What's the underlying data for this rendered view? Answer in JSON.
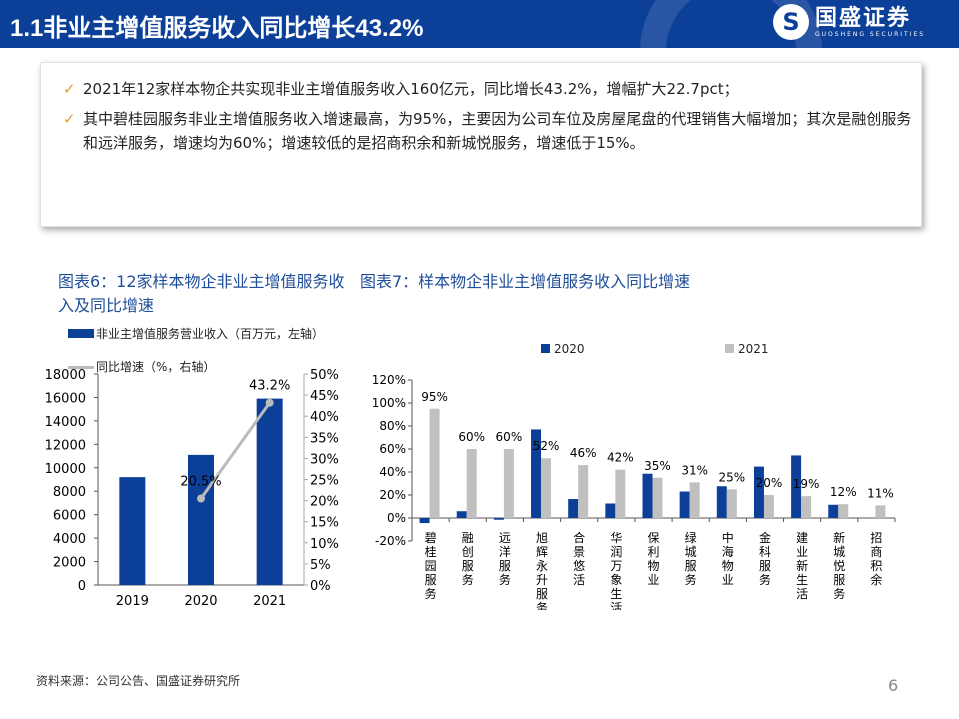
{
  "header": {
    "title": "1.1非业主增值服务收入同比增长43.2%",
    "logo_cn": "国盛证券",
    "logo_en": "GUOSHENG SECURITIES"
  },
  "bullets": [
    {
      "icon": "check-icon",
      "text": "2021年12家样本物企共实现非业主增值服务收入160亿元，同比增长43.2%，增幅扩大22.7pct；"
    },
    {
      "icon": "check-icon",
      "text": "其中碧桂园服务非业主增值服务收入增速最高，为95%，主要因为公司车位及房屋尾盘的代理销售大幅增加；其次是融创服务和远洋服务，增速均为60%；增速较低的是招商积余和新城悦服务，增速低于15%。"
    }
  ],
  "colors": {
    "blue": "#0b3f98",
    "gray": "#c0c0c0",
    "header": "#0b3f98"
  },
  "chart_data": [
    {
      "type": "bar+line",
      "title": "图表6：12家样本物企非业主增值服务收入及同比增速",
      "categories": [
        "2019",
        "2020",
        "2021"
      ],
      "series": [
        {
          "name": "非业主增值服务营业收入（百万元，左轴）",
          "type": "bar",
          "axis": "left",
          "values": [
            9200,
            11100,
            15900
          ]
        },
        {
          "name": "同比增速（%，右轴）",
          "type": "line",
          "axis": "right",
          "values": [
            null,
            20.5,
            43.2
          ],
          "labels": [
            "",
            "20.5%",
            "43.2%"
          ]
        }
      ],
      "left_ylim": [
        0,
        18000
      ],
      "left_ticks": [
        "0",
        "2000",
        "4000",
        "6000",
        "8000",
        "10000",
        "12000",
        "14000",
        "16000",
        "18000"
      ],
      "right_ylim": [
        0,
        50
      ],
      "right_ticks": [
        "0%",
        "5%",
        "10%",
        "15%",
        "20%",
        "25%",
        "30%",
        "35%",
        "40%",
        "45%",
        "50%"
      ],
      "legend": "top",
      "grid": false
    },
    {
      "type": "bar",
      "title": "图表7：样本物企非业主增值服务收入同比增速",
      "categories": [
        "碧桂园服务",
        "融创服务",
        "远洋服务",
        "旭辉永升服务",
        "合景悠活",
        "华润万象生活",
        "保利物业",
        "绿城服务",
        "中海物业",
        "金科服务",
        "建业新生活",
        "新城悦服务",
        "招商积余"
      ],
      "series": [
        {
          "name": "2020",
          "values": [
            -4.4,
            5.9,
            -1.5,
            77,
            16.5,
            12.6,
            38.5,
            23,
            27.6,
            44.7,
            54.4,
            11.5,
            0
          ]
        },
        {
          "name": "2021",
          "values": [
            95,
            60,
            60,
            52,
            46,
            42,
            35,
            31,
            25,
            20,
            19,
            12,
            11
          ],
          "labels": [
            "95%",
            "60%",
            "60%",
            "52%",
            "46%",
            "42%",
            "35%",
            "31%",
            "25%",
            "20%",
            "19%",
            "12%",
            "11%"
          ]
        }
      ],
      "ylim": [
        -20,
        120
      ],
      "ticks": [
        "-20%",
        "0%",
        "20%",
        "40%",
        "60%",
        "80%",
        "100%",
        "120%"
      ],
      "legend": "top",
      "grid": false
    }
  ],
  "footer": {
    "source": "资料来源：公司公告、国盛证券研究所",
    "page": "6"
  }
}
